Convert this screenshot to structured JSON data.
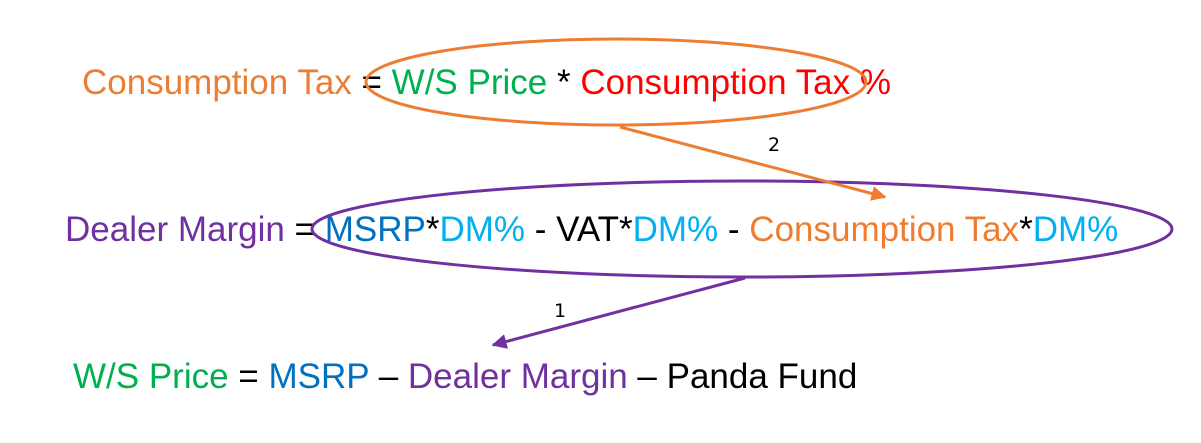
{
  "formulas": [
    {
      "parts": [
        {
          "text": "Consumption Tax",
          "color": "#ED7D31"
        },
        {
          "text": " = ",
          "color": "#000000"
        },
        {
          "text": "W/S Price",
          "color": "#00B050"
        },
        {
          "text": " * ",
          "color": "#000000"
        },
        {
          "text": "Consumption Tax %",
          "color": "#FF0000"
        }
      ]
    },
    {
      "parts": [
        {
          "text": "Dealer Margin",
          "color": "#7030A0"
        },
        {
          "text": " = ",
          "color": "#000000"
        },
        {
          "text": "MSRP",
          "color": "#0070C0"
        },
        {
          "text": "*",
          "color": "#000000"
        },
        {
          "text": "DM%",
          "color": "#00B0F0"
        },
        {
          "text": " - VAT*",
          "color": "#000000"
        },
        {
          "text": "DM%",
          "color": "#00B0F0"
        },
        {
          "text": " - ",
          "color": "#000000"
        },
        {
          "text": "Consumption Tax",
          "color": "#ED7D31"
        },
        {
          "text": "*",
          "color": "#000000"
        },
        {
          "text": "DM%",
          "color": "#00B0F0"
        }
      ]
    },
    {
      "parts": [
        {
          "text": "W/S Price",
          "color": "#00B050"
        },
        {
          "text": " = ",
          "color": "#000000"
        },
        {
          "text": "MSRP",
          "color": "#0070C0"
        },
        {
          "text": " – ",
          "color": "#000000"
        },
        {
          "text": "Dealer Margin",
          "color": "#7030A0"
        },
        {
          "text": " – Panda Fund",
          "color": "#000000"
        }
      ]
    }
  ],
  "arrows": [
    {
      "label": "2"
    },
    {
      "label": "1"
    }
  ]
}
